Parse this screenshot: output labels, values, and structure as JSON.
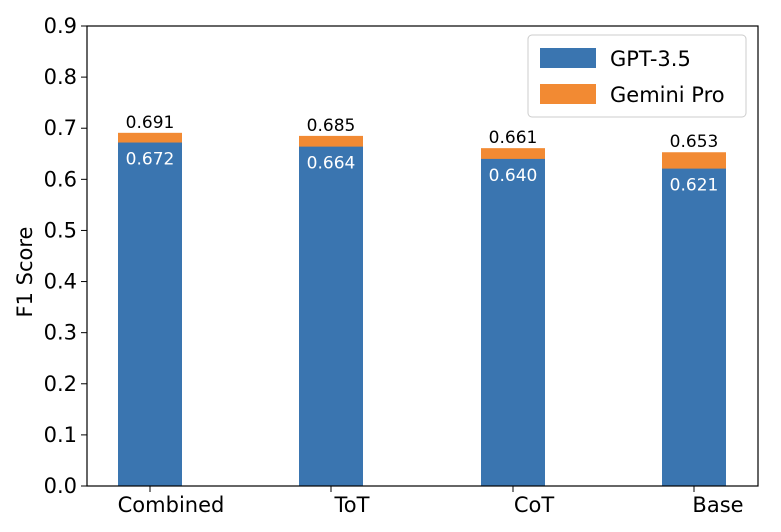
{
  "chart_data": {
    "type": "bar",
    "stacked": "overlay",
    "categories": [
      "Combined",
      "ToT",
      "CoT",
      "Base"
    ],
    "series": [
      {
        "name": "GPT-3.5",
        "values": [
          0.672,
          0.664,
          0.64,
          0.621
        ],
        "labels": [
          "0.672",
          "0.664",
          "0.640",
          "0.621"
        ],
        "color": "#3a75b0"
      },
      {
        "name": "Gemini Pro",
        "values": [
          0.691,
          0.685,
          0.661,
          0.653
        ],
        "labels": [
          "0.691",
          "0.685",
          "0.661",
          "0.653"
        ],
        "color": "#f28a33"
      }
    ],
    "ylabel": "F1 Score",
    "xlabel": "",
    "ylim": [
      0,
      0.9
    ],
    "yticks": [
      "0.0",
      "0.1",
      "0.2",
      "0.3",
      "0.4",
      "0.5",
      "0.6",
      "0.7",
      "0.8",
      "0.9"
    ],
    "grid": false,
    "legend": "top-right"
  }
}
